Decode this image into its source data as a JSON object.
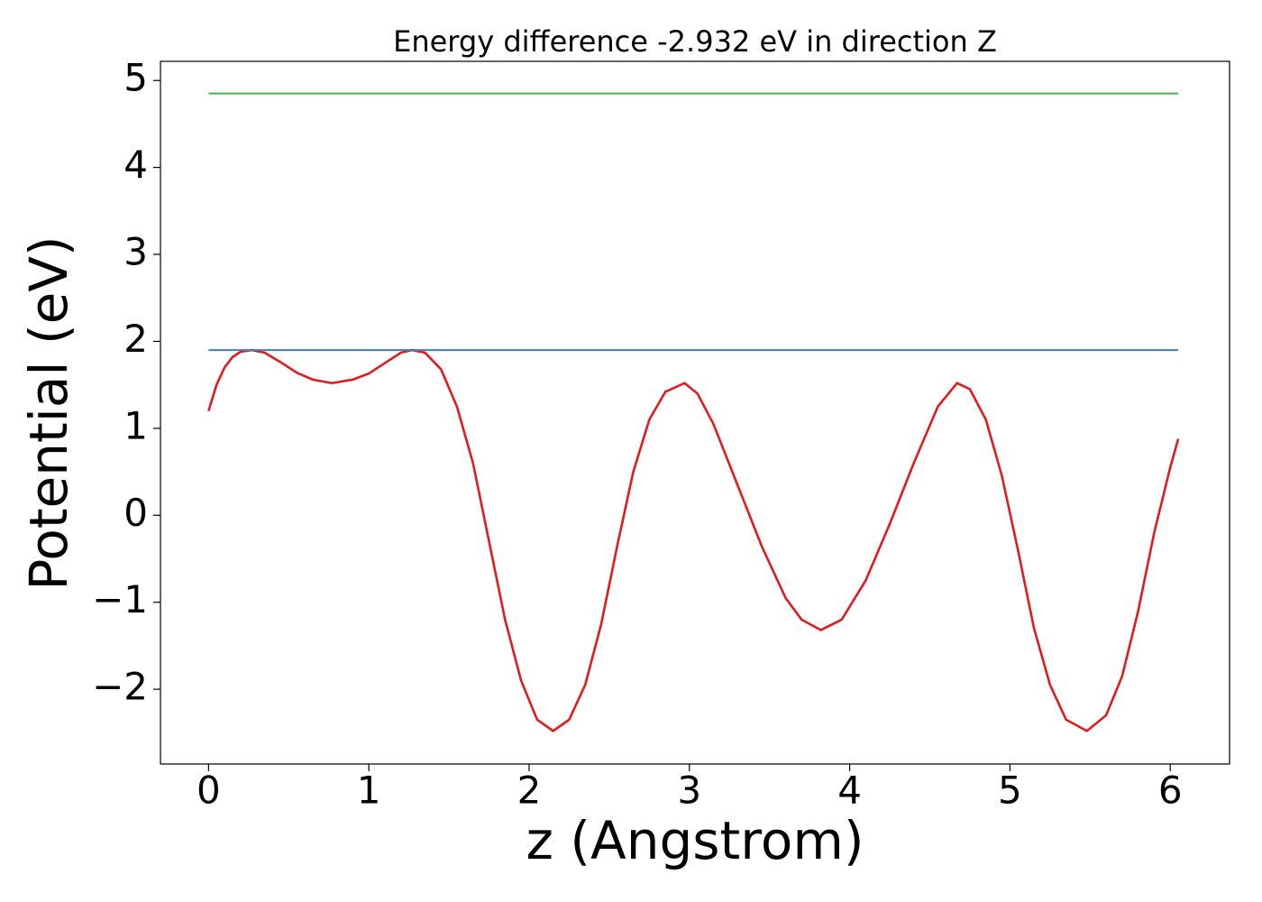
{
  "chart_data": {
    "type": "line",
    "title": "Energy difference -2.932 eV in direction Z",
    "x_label": "z (Angstrom)",
    "y_label": "Potential (eV)",
    "xlim": [
      -0.3,
      6.37
    ],
    "ylim": [
      -2.86,
      5.22
    ],
    "xticks": [
      0,
      1,
      2,
      3,
      4,
      5,
      6
    ],
    "yticks": [
      {
        "value": -2,
        "label": "−2"
      },
      {
        "value": -1,
        "label": "−1"
      },
      0,
      1,
      2,
      3,
      4,
      5
    ],
    "series": [
      {
        "color": "#e31a1c",
        "x": [
          0,
          0.05,
          0.1,
          0.15,
          0.2,
          0.27,
          0.35,
          0.45,
          0.55,
          0.65,
          0.77,
          0.9,
          1.0,
          1.1,
          1.2,
          1.27,
          1.35,
          1.45,
          1.55,
          1.65,
          1.75,
          1.85,
          1.95,
          2.05,
          2.15,
          2.25,
          2.35,
          2.45,
          2.55,
          2.65,
          2.75,
          2.85,
          2.97,
          3.05,
          3.15,
          3.3,
          3.45,
          3.6,
          3.7,
          3.82,
          3.95,
          4.1,
          4.25,
          4.4,
          4.55,
          4.67,
          4.75,
          4.85,
          4.95,
          5.05,
          5.15,
          5.25,
          5.35,
          5.48,
          5.6,
          5.7,
          5.8,
          5.9,
          6.0,
          6.05
        ],
        "values": [
          1.2,
          1.5,
          1.7,
          1.82,
          1.88,
          1.9,
          1.87,
          1.76,
          1.64,
          1.56,
          1.52,
          1.56,
          1.63,
          1.75,
          1.87,
          1.9,
          1.87,
          1.68,
          1.25,
          0.6,
          -0.3,
          -1.2,
          -1.9,
          -2.35,
          -2.48,
          -2.35,
          -1.95,
          -1.25,
          -0.35,
          0.5,
          1.1,
          1.42,
          1.52,
          1.4,
          1.05,
          0.35,
          -0.35,
          -0.95,
          -1.2,
          -1.32,
          -1.2,
          -0.75,
          -0.1,
          0.6,
          1.25,
          1.52,
          1.45,
          1.1,
          0.45,
          -0.4,
          -1.3,
          -1.95,
          -2.35,
          -2.48,
          -2.3,
          -1.85,
          -1.1,
          -0.2,
          0.55,
          0.88
        ]
      },
      {
        "color": "#3a7fc1",
        "x": [
          0,
          6.05
        ],
        "values": [
          1.9,
          1.9
        ]
      },
      {
        "color": "#4daf4a",
        "x": [
          0,
          6.05
        ],
        "values": [
          4.85,
          4.85
        ]
      }
    ]
  }
}
